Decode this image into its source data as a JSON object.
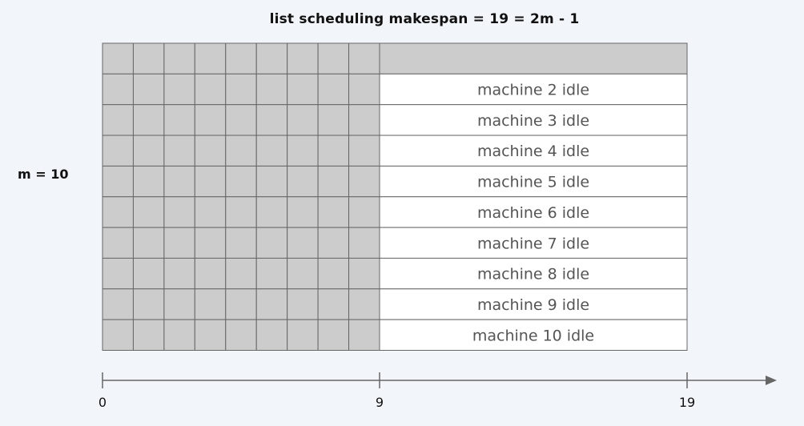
{
  "title": "list scheduling makespan = 19 = 2m - 1",
  "m_label": "m = 10",
  "machines": 10,
  "busy_until": 9,
  "makespan": 19,
  "idle_labels": [
    "machine 2 idle",
    "machine 3 idle",
    "machine 4 idle",
    "machine 5 idle",
    "machine 6 idle",
    "machine 7 idle",
    "machine 8 idle",
    "machine 9 idle",
    "machine 10 idle"
  ],
  "axis": {
    "ticks": [
      {
        "value": 0,
        "label": "0"
      },
      {
        "value": 9,
        "label": "9"
      },
      {
        "value": 19,
        "label": "19"
      }
    ]
  },
  "colors": {
    "busy": "#cccccc",
    "idle": "#ffffff",
    "line": "#666666",
    "background": "#f2f5f9"
  }
}
